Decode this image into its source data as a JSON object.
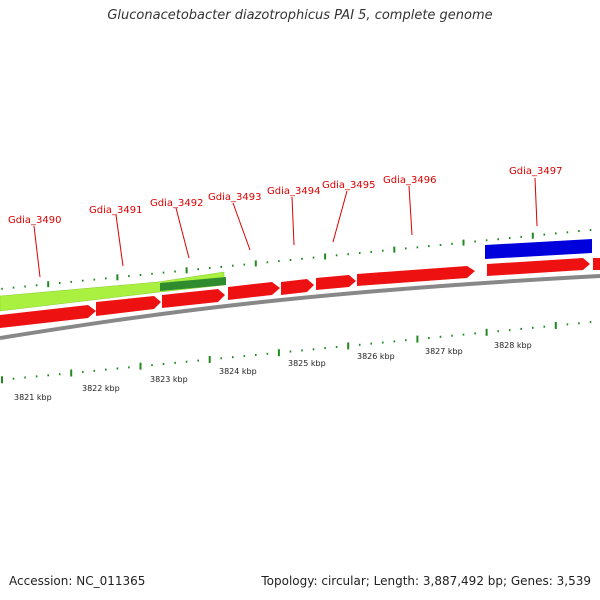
{
  "title": "Gluconacetobacter diazotrophicus PAI 5, complete genome",
  "footer": {
    "accession": "Accession: NC_011365",
    "topology": "Topology: circular; Length: 3,887,492 bp; Genes: 3,539"
  },
  "colors": {
    "cds": "#ee1111",
    "feature_light_green": "#aaf040",
    "feature_dark_green": "#2e8b2e",
    "feature_blue": "#0000dd",
    "backbone": "#888888",
    "gene_label": "#dd0000",
    "ticks": "#228822"
  },
  "gene_labels": [
    "Gdia_3490",
    "Gdia_3491",
    "Gdia_3492",
    "Gdia_3493",
    "Gdia_3494",
    "Gdia_3495",
    "Gdia_3496",
    "Gdia_3497"
  ],
  "kbp_labels": [
    "3821 kbp",
    "3822 kbp",
    "3823 kbp",
    "3824 kbp",
    "3825 kbp",
    "3826 kbp",
    "3827 kbp",
    "3828 kbp"
  ]
}
